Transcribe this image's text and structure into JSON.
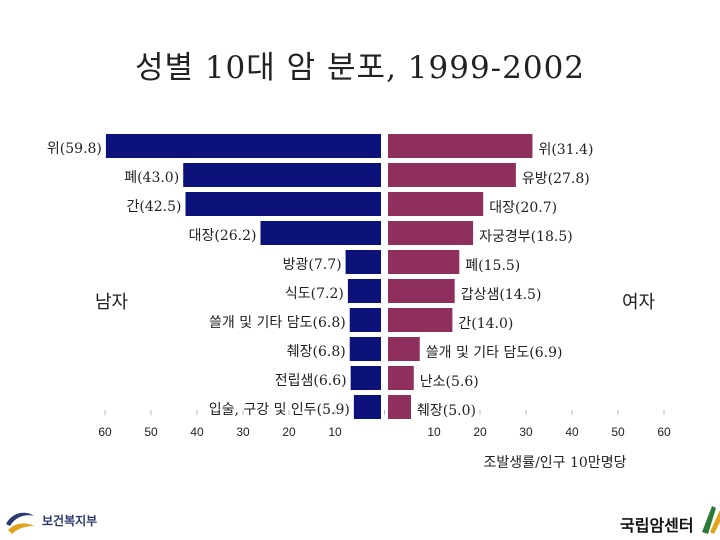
{
  "chart_data": {
    "type": "bar",
    "title": "성별 10대 암 분포, 1999-2002",
    "xlabel": "조발생률/인구 10만명당",
    "xlim": [
      0,
      60
    ],
    "x_ticks": [
      "60",
      "50",
      "40",
      "30",
      "20",
      "10",
      "",
      "10",
      "20",
      "30",
      "40",
      "50",
      "60"
    ],
    "series": [
      {
        "name": "남자",
        "color": "#0d127a",
        "categories": [
          "위",
          "폐",
          "간",
          "대장",
          "방광",
          "식도",
          "쓸개 및 기타 담도",
          "췌장",
          "전립샘",
          "입술, 구강 및 인두"
        ],
        "values": [
          59.8,
          43.0,
          42.5,
          26.2,
          7.7,
          7.2,
          6.8,
          6.8,
          6.6,
          5.9
        ],
        "labels": [
          "위(59.8)",
          "폐(43.0)",
          "간(42.5)",
          "대장(26.2)",
          "방광(7.7)",
          "식도(7.2)",
          "쓸개 및 기타 담도(6.8)",
          "췌장(6.8)",
          "전립샘(6.6)",
          "입술, 구강 및 인두(5.9)"
        ]
      },
      {
        "name": "여자",
        "color": "#8e2f5e",
        "categories": [
          "위",
          "유방",
          "대장",
          "자궁경부",
          "폐",
          "갑상샘",
          "간",
          "쓸개 및 기타 담도",
          "난소",
          "췌장"
        ],
        "values": [
          31.4,
          27.8,
          20.7,
          18.5,
          15.5,
          14.5,
          14.0,
          6.9,
          5.6,
          5.0
        ],
        "labels": [
          "위(31.4)",
          "유방(27.8)",
          "대장(20.7)",
          "자궁경부(18.5)",
          "폐(15.5)",
          "갑상샘(14.5)",
          "간(14.0)",
          "쓸개 및 기타 담도(6.9)",
          "난소(5.6)",
          "췌장(5.0)"
        ]
      }
    ]
  },
  "footer": {
    "left_logo_text": "보건복지부",
    "right_logo_text": "국립암센터"
  }
}
